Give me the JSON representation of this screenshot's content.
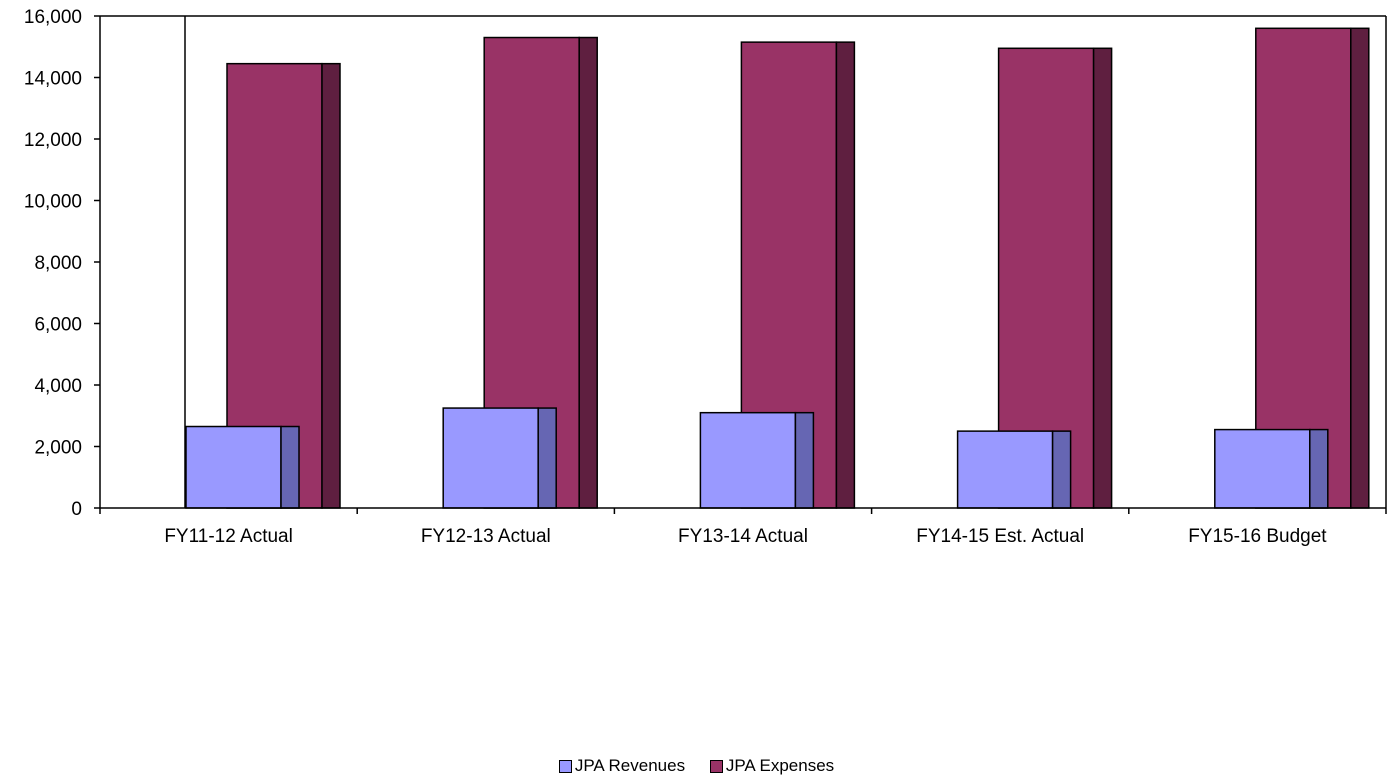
{
  "chart_data": {
    "type": "bar",
    "title": "",
    "xlabel": "",
    "ylabel": "",
    "categories": [
      "FY11-12 Actual",
      "FY12-13 Actual",
      "FY13-14 Actual",
      "FY14-15 Est. Actual",
      "FY15-16 Budget"
    ],
    "series": [
      {
        "name": "JPA Revenues",
        "values": [
          2650,
          3250,
          3100,
          2500,
          2550
        ],
        "color": "#9999ff",
        "side_color": "#6666b3"
      },
      {
        "name": "JPA Expenses",
        "values": [
          14450,
          15300,
          15150,
          14950,
          15600
        ],
        "color": "#993366",
        "side_color": "#5f1f40"
      }
    ],
    "ylim": [
      0,
      16000
    ],
    "yticks": [
      0,
      2000,
      4000,
      6000,
      8000,
      10000,
      12000,
      14000,
      16000
    ],
    "ytick_labels": [
      "0",
      "2,000",
      "4,000",
      "6,000",
      "8,000",
      "10,000",
      "12,000",
      "14,000",
      "16,000"
    ],
    "grid": false,
    "legend_position": "bottom"
  }
}
